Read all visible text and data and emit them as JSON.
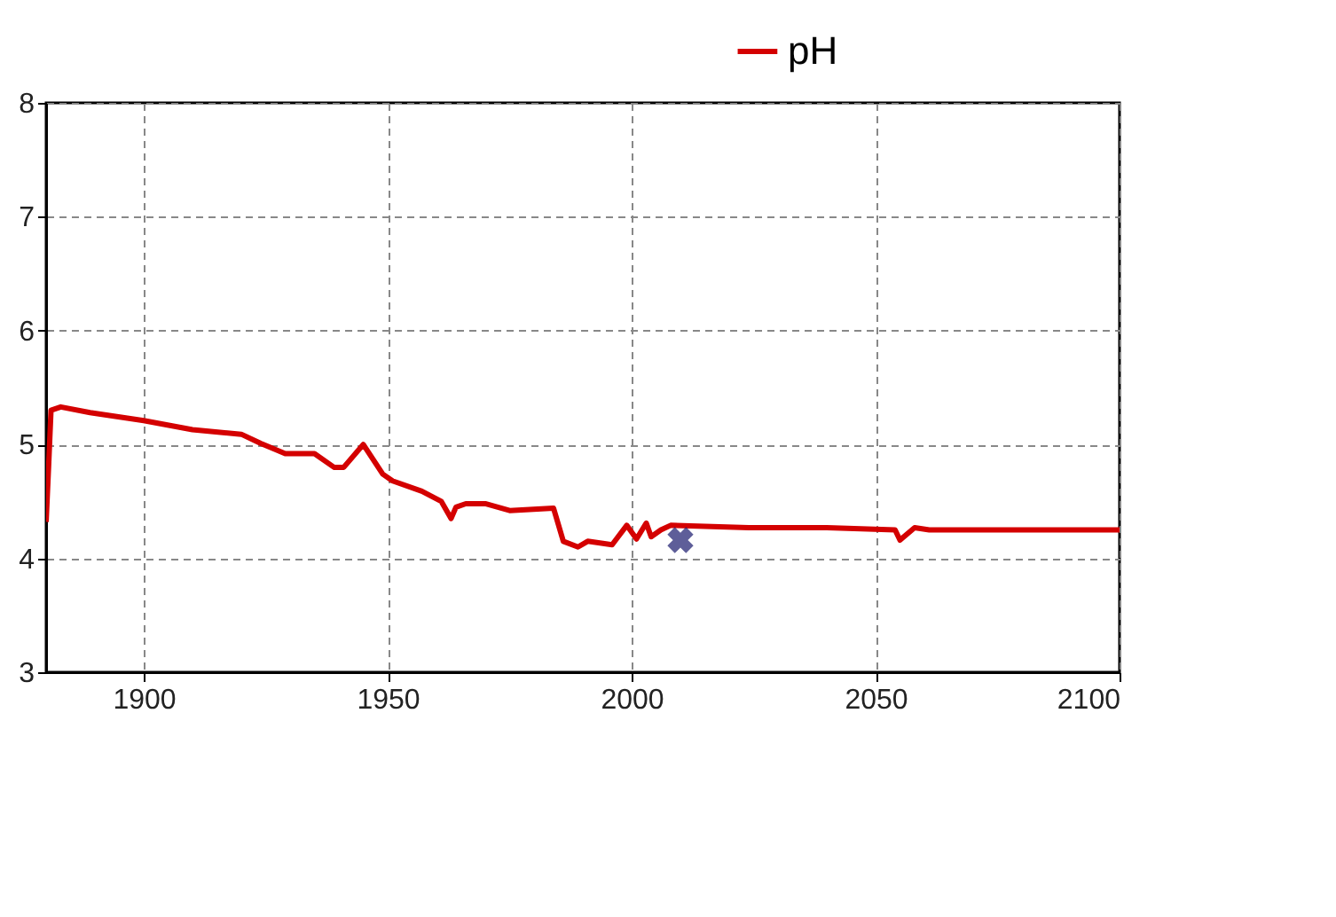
{
  "chart_data": {
    "type": "line",
    "xlim": [
      1880,
      2100
    ],
    "xticks": [
      1900,
      1950,
      2000,
      2050,
      2100
    ],
    "ylim": [
      3,
      8
    ],
    "yticks": [
      3,
      4,
      5,
      6,
      7,
      8
    ],
    "grid": true,
    "legend": "top",
    "line_style": "solid",
    "marker": "none",
    "series": [
      {
        "name": "pH",
        "color": "#d40000",
        "x": [
          1880,
          1880.5,
          1881,
          1883,
          1889,
          1900,
          1910,
          1920,
          1924,
          1929,
          1935,
          1939,
          1941,
          1945,
          1949,
          1951,
          1957,
          1961,
          1963,
          1964,
          1966,
          1970,
          1975,
          1984,
          1986,
          1989,
          1991,
          1996,
          1999,
          2001,
          2003,
          2004,
          2006,
          2008,
          2024,
          2040,
          2054,
          2055,
          2058,
          2061,
          2100
        ],
        "values": [
          4.32,
          4.8,
          5.3,
          5.33,
          5.28,
          5.21,
          5.13,
          5.09,
          5.01,
          4.92,
          4.92,
          4.8,
          4.8,
          5.0,
          4.74,
          4.68,
          4.59,
          4.5,
          4.35,
          4.45,
          4.48,
          4.48,
          4.42,
          4.44,
          4.15,
          4.1,
          4.15,
          4.12,
          4.29,
          4.17,
          4.31,
          4.19,
          4.25,
          4.29,
          4.27,
          4.27,
          4.25,
          4.16,
          4.27,
          4.25,
          4.25
        ]
      },
      {
        "type": "scatter",
        "marker": "cross",
        "color": "#1a1a6e",
        "x": [
          2010
        ],
        "values": [
          4.16
        ]
      }
    ]
  }
}
